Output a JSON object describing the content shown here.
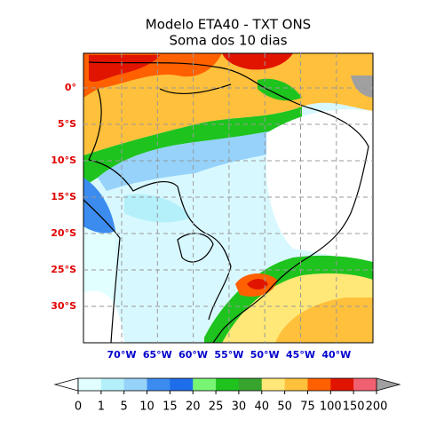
{
  "header": {
    "title": "Modelo ETA40 - TXT ONS",
    "subtitle": "Soma dos 10 dias"
  },
  "map": {
    "lat_labels": [
      {
        "value": 0,
        "label": "0°"
      },
      {
        "value": -5,
        "label": "5°S"
      },
      {
        "value": -10,
        "label": "10°S"
      },
      {
        "value": -15,
        "label": "15°S"
      },
      {
        "value": -20,
        "label": "20°S"
      },
      {
        "value": -25,
        "label": "25°S"
      },
      {
        "value": -30,
        "label": "30°S"
      }
    ],
    "lon_labels": [
      {
        "value": -70,
        "label": "70°W"
      },
      {
        "value": -65,
        "label": "65°W"
      },
      {
        "value": -60,
        "label": "60°W"
      },
      {
        "value": -55,
        "label": "55°W"
      },
      {
        "value": -50,
        "label": "50°W"
      },
      {
        "value": -45,
        "label": "45°W"
      },
      {
        "value": -40,
        "label": "40°W"
      }
    ],
    "lat_color": "#e00000",
    "lon_color": "#0000cc"
  },
  "colorbar": {
    "ticks": [
      0,
      1,
      5,
      10,
      15,
      20,
      25,
      30,
      40,
      50,
      75,
      100,
      150,
      200
    ],
    "colors": [
      "#e1ffff",
      "#b4f0fa",
      "#96d2fa",
      "#3c8cf0",
      "#1e6eeb",
      "#78f573",
      "#1ec31e",
      "#37a52d",
      "#ffe878",
      "#ffc03c",
      "#ff6000",
      "#e11400",
      "#f06070"
    ],
    "under_color": "#ffffff",
    "over_color": "#a0a0a0"
  }
}
